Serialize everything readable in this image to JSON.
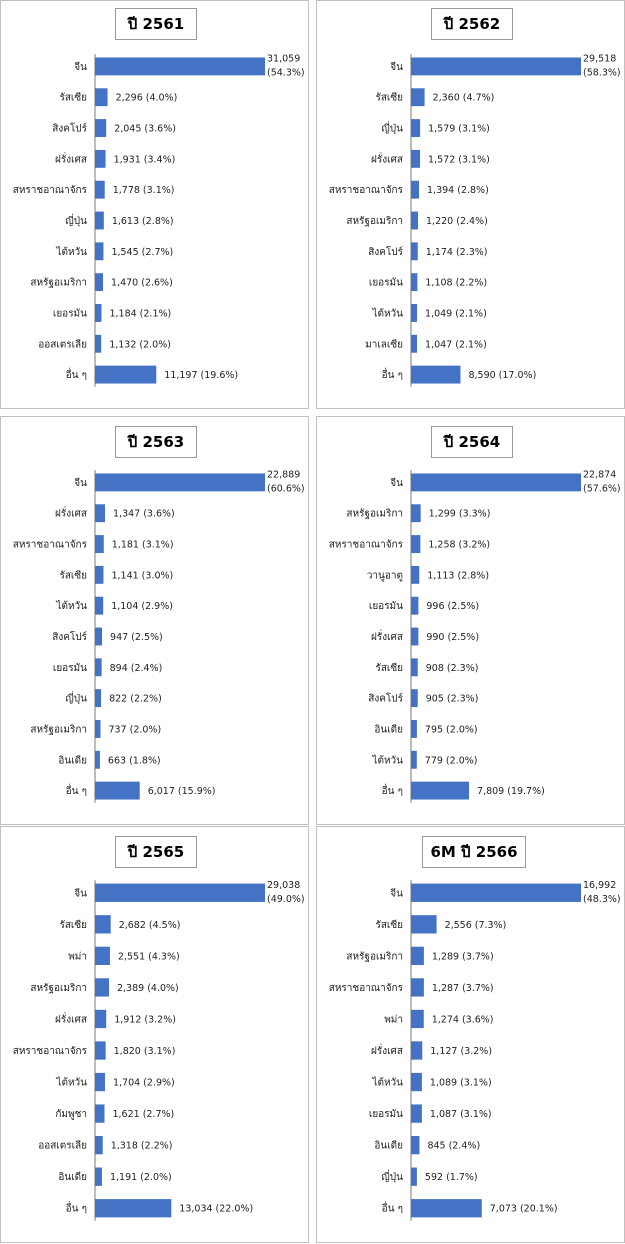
{
  "chart_data": [
    {
      "type": "bar",
      "orientation": "horizontal",
      "title": "ปี 2561",
      "categories": [
        "จีน",
        "รัสเซีย",
        "สิงคโปร์",
        "ฝรั่งเศส",
        "สหราชอาณาจักร",
        "ญี่ปุ่น",
        "ไต้หวัน",
        "สหรัฐอเมริกา",
        "เยอรมัน",
        "ออสเตรเลีย",
        "อื่น ๆ"
      ],
      "values": [
        31059,
        2296,
        2045,
        1931,
        1778,
        1613,
        1545,
        1470,
        1184,
        1132,
        11197
      ],
      "labels": [
        "31,059 (54.3%)",
        "2,296 (4.0%)",
        "2,045 (3.6%)",
        "1,931 (3.4%)",
        "1,778 (3.1%)",
        "1,613 (2.8%)",
        "1,545 (2.7%)",
        "1,470 (2.6%)",
        "1,184 (2.1%)",
        "1,132 (2.0%)",
        "11,197 (19.6%)"
      ]
    },
    {
      "type": "bar",
      "orientation": "horizontal",
      "title": "ปี 2562",
      "categories": [
        "จีน",
        "รัสเซีย",
        "ญี่ปุ่น",
        "ฝรั่งเศส",
        "สหราชอาณาจักร",
        "สหรัฐอเมริกา",
        "สิงคโปร์",
        "เยอรมัน",
        "ไต้หวัน",
        "มาเลเซีย",
        "อื่น ๆ"
      ],
      "values": [
        29518,
        2360,
        1579,
        1572,
        1394,
        1220,
        1174,
        1108,
        1049,
        1047,
        8590
      ],
      "labels": [
        "29,518 (58.3%)",
        "2,360 (4.7%)",
        "1,579 (3.1%)",
        "1,572 (3.1%)",
        "1,394 (2.8%)",
        "1,220 (2.4%)",
        "1,174 (2.3%)",
        "1,108 (2.2%)",
        "1,049 (2.1%)",
        "1,047 (2.1%)",
        "8,590 (17.0%)"
      ]
    },
    {
      "type": "bar",
      "orientation": "horizontal",
      "title": "ปี 2563",
      "categories": [
        "จีน",
        "ฝรั่งเศส",
        "สหราชอาณาจักร",
        "รัสเซีย",
        "ไต้หวัน",
        "สิงคโปร์",
        "เยอรมัน",
        "ญี่ปุ่น",
        "สหรัฐอเมริกา",
        "อินเดีย",
        "อื่น ๆ"
      ],
      "values": [
        22889,
        1347,
        1181,
        1141,
        1104,
        947,
        894,
        822,
        737,
        663,
        6017
      ],
      "labels": [
        "22,889 (60.6%)",
        "1,347 (3.6%)",
        "1,181 (3.1%)",
        "1,141 (3.0%)",
        "1,104 (2.9%)",
        "947 (2.5%)",
        "894 (2.4%)",
        "822 (2.2%)",
        "737 (2.0%)",
        "663 (1.8%)",
        "6,017 (15.9%)"
      ]
    },
    {
      "type": "bar",
      "orientation": "horizontal",
      "title": "ปี 2564",
      "categories": [
        "จีน",
        "สหรัฐอเมริกา",
        "สหราชอาณาจักร",
        "วานูอาตู",
        "เยอรมัน",
        "ฝรั่งเศส",
        "รัสเซีย",
        "สิงคโปร์",
        "อินเดีย",
        "ไต้หวัน",
        "อื่น ๆ"
      ],
      "values": [
        22874,
        1299,
        1258,
        1113,
        996,
        990,
        908,
        905,
        795,
        779,
        7809
      ],
      "labels": [
        "22,874 (57.6%)",
        "1,299 (3.3%)",
        "1,258 (3.2%)",
        "1,113 (2.8%)",
        "996 (2.5%)",
        "990 (2.5%)",
        "908 (2.3%)",
        "905 (2.3%)",
        "795 (2.0%)",
        "779 (2.0%)",
        "7,809 (19.7%)"
      ]
    },
    {
      "type": "bar",
      "orientation": "horizontal",
      "title": "ปี 2565",
      "categories": [
        "จีน",
        "รัสเซีย",
        "พม่า",
        "สหรัฐอเมริกา",
        "ฝรั่งเศส",
        "สหราชอาณาจักร",
        "ไต้หวัน",
        "กัมพูชา",
        "ออสเตรเลีย",
        "อินเดีย",
        "อื่น ๆ"
      ],
      "values": [
        29038,
        2682,
        2551,
        2389,
        1912,
        1820,
        1704,
        1621,
        1318,
        1191,
        13034
      ],
      "labels": [
        "29,038 (49.0%)",
        "2,682 (4.5%)",
        "2,551 (4.3%)",
        "2,389 (4.0%)",
        "1,912 (3.2%)",
        "1,820 (3.1%)",
        "1,704 (2.9%)",
        "1,621 (2.7%)",
        "1,318 (2.2%)",
        "1,191 (2.0%)",
        "13,034 (22.0%)"
      ]
    },
    {
      "type": "bar",
      "orientation": "horizontal",
      "title": "6M ปี 2566",
      "categories": [
        "จีน",
        "รัสเซีย",
        "สหรัฐอเมริกา",
        "สหราชอาณาจักร",
        "พม่า",
        "ฝรั่งเศส",
        "ไต้หวัน",
        "เยอรมัน",
        "อินเดีย",
        "ญี่ปุ่น",
        "อื่น ๆ"
      ],
      "values": [
        16992,
        2556,
        1289,
        1287,
        1274,
        1127,
        1089,
        1087,
        845,
        592,
        7073
      ],
      "labels": [
        "16,992 (48.3%)",
        "2,556 (7.3%)",
        "1,289 (3.7%)",
        "1,287 (3.7%)",
        "1,274 (3.6%)",
        "1,127 (3.2%)",
        "1,089 (3.1%)",
        "1,087 (3.1%)",
        "845 (2.4%)",
        "592 (1.7%)",
        "7,073 (20.1%)"
      ]
    }
  ],
  "colors": {
    "bar": "#4472c4",
    "panel_border": "#bfbfbf",
    "axis": "#595959"
  }
}
